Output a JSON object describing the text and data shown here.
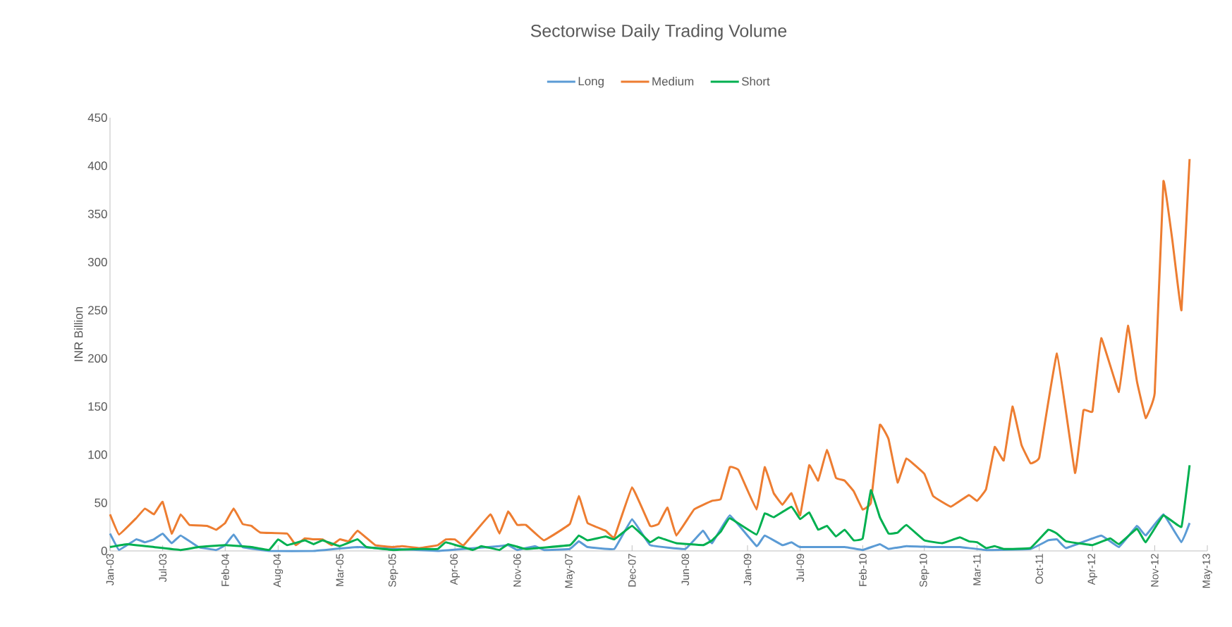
{
  "chart_data": {
    "type": "line",
    "title": "Sectorwise Daily Trading Volume",
    "ylabel": "INR Billion",
    "legend": "top",
    "xlim": [
      "2003-01",
      "2013-05"
    ],
    "xticks": [
      {
        "value": "2003-01",
        "label": "Jan-03"
      },
      {
        "value": "2003-07",
        "label": "Jul-03"
      },
      {
        "value": "2004-02",
        "label": "Feb-04"
      },
      {
        "value": "2004-08",
        "label": "Aug-04"
      },
      {
        "value": "2005-03",
        "label": "Mar-05"
      },
      {
        "value": "2005-09",
        "label": "Sep-05"
      },
      {
        "value": "2006-04",
        "label": "Apr-06"
      },
      {
        "value": "2006-11",
        "label": "Nov-06"
      },
      {
        "value": "2007-05",
        "label": "May-07"
      },
      {
        "value": "2007-12",
        "label": "Dec-07"
      },
      {
        "value": "2008-06",
        "label": "Jun-08"
      },
      {
        "value": "2009-01",
        "label": "Jan-09"
      },
      {
        "value": "2009-07",
        "label": "Jul-09"
      },
      {
        "value": "2010-02",
        "label": "Feb-10"
      },
      {
        "value": "2010-09",
        "label": "Sep-10"
      },
      {
        "value": "2011-03",
        "label": "Mar-11"
      },
      {
        "value": "2011-10",
        "label": "Oct-11"
      },
      {
        "value": "2012-04",
        "label": "Apr-12"
      },
      {
        "value": "2012-11",
        "label": "Nov-12"
      },
      {
        "value": "2013-05",
        "label": "May-13"
      }
    ],
    "ylim": [
      0,
      450
    ],
    "yticks": [
      0,
      50,
      100,
      150,
      200,
      250,
      300,
      350,
      400,
      450
    ],
    "series": [
      {
        "name": "Long",
        "color": "#5b9bd5",
        "x": [
          "2003-01",
          "2003-02",
          "2003-04",
          "2003-05",
          "2003-06",
          "2003-07",
          "2003-08",
          "2003-09",
          "2003-11",
          "2004-01",
          "2004-02",
          "2004-03",
          "2004-04",
          "2004-07",
          "2004-12",
          "2005-05",
          "2006-02",
          "2006-05",
          "2006-09",
          "2006-10",
          "2006-11",
          "2007-01",
          "2007-02",
          "2007-05",
          "2007-06",
          "2007-07",
          "2007-10",
          "2007-12",
          "2008-02",
          "2008-06",
          "2008-08",
          "2008-09",
          "2008-11",
          "2009-02",
          "2009-03",
          "2009-05",
          "2009-06",
          "2009-07",
          "2009-12",
          "2010-02",
          "2010-04",
          "2010-05",
          "2010-07",
          "2010-10",
          "2011-01",
          "2011-04",
          "2011-09",
          "2011-11",
          "2011-12",
          "2012-01",
          "2012-05",
          "2012-07",
          "2012-09",
          "2012-10",
          "2012-12",
          "2013-02",
          "2013-03"
        ],
        "values": [
          18,
          1,
          12,
          9,
          12,
          18,
          8,
          16,
          4,
          1,
          6,
          17,
          4,
          0,
          0,
          4,
          0,
          2,
          5,
          6,
          1,
          5,
          1,
          2,
          10,
          4,
          2,
          33,
          6,
          2,
          21,
          8,
          37,
          5,
          16,
          6,
          9,
          4,
          4,
          1,
          7,
          2,
          5,
          4,
          4,
          1,
          2,
          11,
          12,
          3,
          16,
          4,
          26,
          16,
          38,
          9,
          29
        ]
      },
      {
        "name": "Medium",
        "color": "#ed7d31",
        "x": [
          "2003-01",
          "2003-02",
          "2003-04",
          "2003-05",
          "2003-06",
          "2003-07",
          "2003-08",
          "2003-09",
          "2003-10",
          "2003-12",
          "2004-01",
          "2004-02",
          "2004-03",
          "2004-04",
          "2004-05",
          "2004-06",
          "2004-09",
          "2004-10",
          "2004-11",
          "2004-12",
          "2005-01",
          "2005-02",
          "2005-03",
          "2005-04",
          "2005-05",
          "2005-07",
          "2005-09",
          "2005-10",
          "2005-12",
          "2006-02",
          "2006-03",
          "2006-04",
          "2006-05",
          "2006-08",
          "2006-09",
          "2006-10",
          "2006-11",
          "2006-12",
          "2007-02",
          "2007-05",
          "2007-06",
          "2007-07",
          "2007-09",
          "2007-10",
          "2007-12",
          "2008-02",
          "2008-03",
          "2008-04",
          "2008-05",
          "2008-07",
          "2008-09",
          "2008-10",
          "2008-11",
          "2008-12",
          "2009-02",
          "2009-03",
          "2009-04",
          "2009-05",
          "2009-06",
          "2009-07",
          "2009-08",
          "2009-09",
          "2009-10",
          "2009-11",
          "2009-12",
          "2010-01",
          "2010-02",
          "2010-03",
          "2010-04",
          "2010-05",
          "2010-06",
          "2010-07",
          "2010-09",
          "2010-10",
          "2010-12",
          "2011-02",
          "2011-03",
          "2011-04",
          "2011-05",
          "2011-06",
          "2011-07",
          "2011-08",
          "2011-09",
          "2011-10",
          "2011-12",
          "2012-02",
          "2012-03",
          "2012-04",
          "2012-05",
          "2012-07",
          "2012-08",
          "2012-09",
          "2012-10",
          "2012-11",
          "2012-12",
          "2013-01",
          "2013-02",
          "2013-03"
        ],
        "values": [
          38,
          17,
          34,
          44,
          38,
          51,
          18,
          38,
          27,
          26,
          22,
          29,
          44,
          28,
          26,
          19,
          18,
          6,
          13,
          12,
          12,
          6,
          12,
          10,
          21,
          6,
          4,
          5,
          3,
          6,
          12,
          12,
          6,
          38,
          18,
          41,
          27,
          27,
          11,
          28,
          57,
          29,
          21,
          14,
          66,
          26,
          28,
          45,
          16,
          43,
          52,
          54,
          87,
          84,
          43,
          87,
          60,
          48,
          60,
          37,
          89,
          73,
          105,
          76,
          73,
          62,
          43,
          50,
          131,
          116,
          71,
          96,
          80,
          57,
          46,
          58,
          52,
          64,
          108,
          94,
          150,
          110,
          91,
          97,
          205,
          81,
          146,
          145,
          221,
          165,
          234,
          176,
          138,
          164,
          384,
          322,
          250,
          407
        ]
      },
      {
        "name": "Short",
        "color": "#00b050",
        "x": [
          "2003-01",
          "2003-03",
          "2003-06",
          "2003-09",
          "2003-11",
          "2004-02",
          "2004-05",
          "2004-07",
          "2004-08",
          "2004-09",
          "2004-11",
          "2004-12",
          "2005-01",
          "2005-03",
          "2005-05",
          "2005-06",
          "2005-09",
          "2005-12",
          "2006-02",
          "2006-03",
          "2006-06",
          "2006-07",
          "2006-09",
          "2006-10",
          "2006-12",
          "2007-05",
          "2007-06",
          "2007-07",
          "2007-09",
          "2007-10",
          "2007-12",
          "2008-02",
          "2008-03",
          "2008-05",
          "2008-08",
          "2008-09",
          "2008-10",
          "2008-11",
          "2009-02",
          "2009-03",
          "2009-04",
          "2009-06",
          "2009-07",
          "2009-08",
          "2009-09",
          "2009-10",
          "2009-11",
          "2009-12",
          "2010-01",
          "2010-02",
          "2010-03",
          "2010-04",
          "2010-05",
          "2010-06",
          "2010-07",
          "2010-09",
          "2010-11",
          "2011-01",
          "2011-02",
          "2011-03",
          "2011-04",
          "2011-05",
          "2011-06",
          "2011-09",
          "2011-11",
          "2011-12",
          "2012-01",
          "2012-04",
          "2012-06",
          "2012-07",
          "2012-09",
          "2012-10",
          "2012-12",
          "2013-02",
          "2013-03"
        ],
        "values": [
          4,
          7,
          4,
          1,
          4,
          6,
          4,
          1,
          12,
          6,
          11,
          7,
          11,
          5,
          12,
          4,
          1,
          2,
          2,
          9,
          1,
          5,
          1,
          7,
          2,
          6,
          16,
          11,
          15,
          12,
          26,
          9,
          14,
          8,
          6,
          11,
          20,
          34,
          17,
          39,
          35,
          46,
          33,
          40,
          22,
          26,
          15,
          22,
          11,
          13,
          63,
          35,
          18,
          19,
          27,
          11,
          8,
          14,
          10,
          9,
          3,
          5,
          2,
          3,
          22,
          18,
          10,
          6,
          13,
          7,
          23,
          9,
          37,
          25,
          89
        ]
      }
    ]
  }
}
